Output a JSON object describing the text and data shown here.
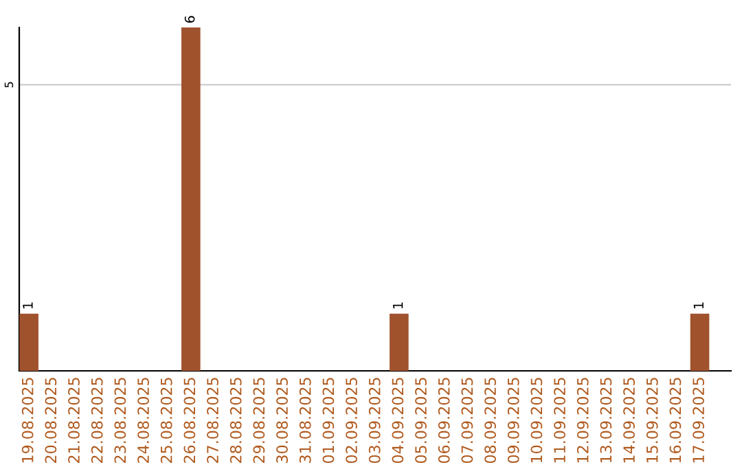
{
  "chart_data": {
    "type": "bar",
    "categories": [
      "19.08.2025",
      "20.08.2025",
      "21.08.2025",
      "22.08.2025",
      "23.08.2025",
      "24.08.2025",
      "25.08.2025",
      "26.08.2025",
      "27.08.2025",
      "28.08.2025",
      "29.08.2025",
      "30.08.2025",
      "31.08.2025",
      "01.09.2025",
      "02.09.2025",
      "03.09.2025",
      "04.09.2025",
      "05.09.2025",
      "06.09.2025",
      "07.09.2025",
      "08.09.2025",
      "09.09.2025",
      "10.09.2025",
      "11.09.2025",
      "12.09.2025",
      "13.09.2025",
      "14.09.2025",
      "15.09.2025",
      "16.09.2025",
      "17.09.2025"
    ],
    "values": [
      1,
      0,
      0,
      0,
      0,
      0,
      0,
      6,
      0,
      0,
      0,
      0,
      0,
      0,
      0,
      0,
      1,
      0,
      0,
      0,
      0,
      0,
      0,
      0,
      0,
      0,
      0,
      0,
      0,
      1
    ],
    "value_labels": [
      "1",
      null,
      null,
      null,
      null,
      null,
      null,
      "6",
      null,
      null,
      null,
      null,
      null,
      null,
      null,
      null,
      "1",
      null,
      null,
      null,
      null,
      null,
      null,
      null,
      null,
      null,
      null,
      null,
      null,
      "1"
    ],
    "color": "#a0522d",
    "ylim": [
      0,
      6
    ],
    "yticks": [
      5
    ],
    "grid": "y",
    "legend": false
  }
}
